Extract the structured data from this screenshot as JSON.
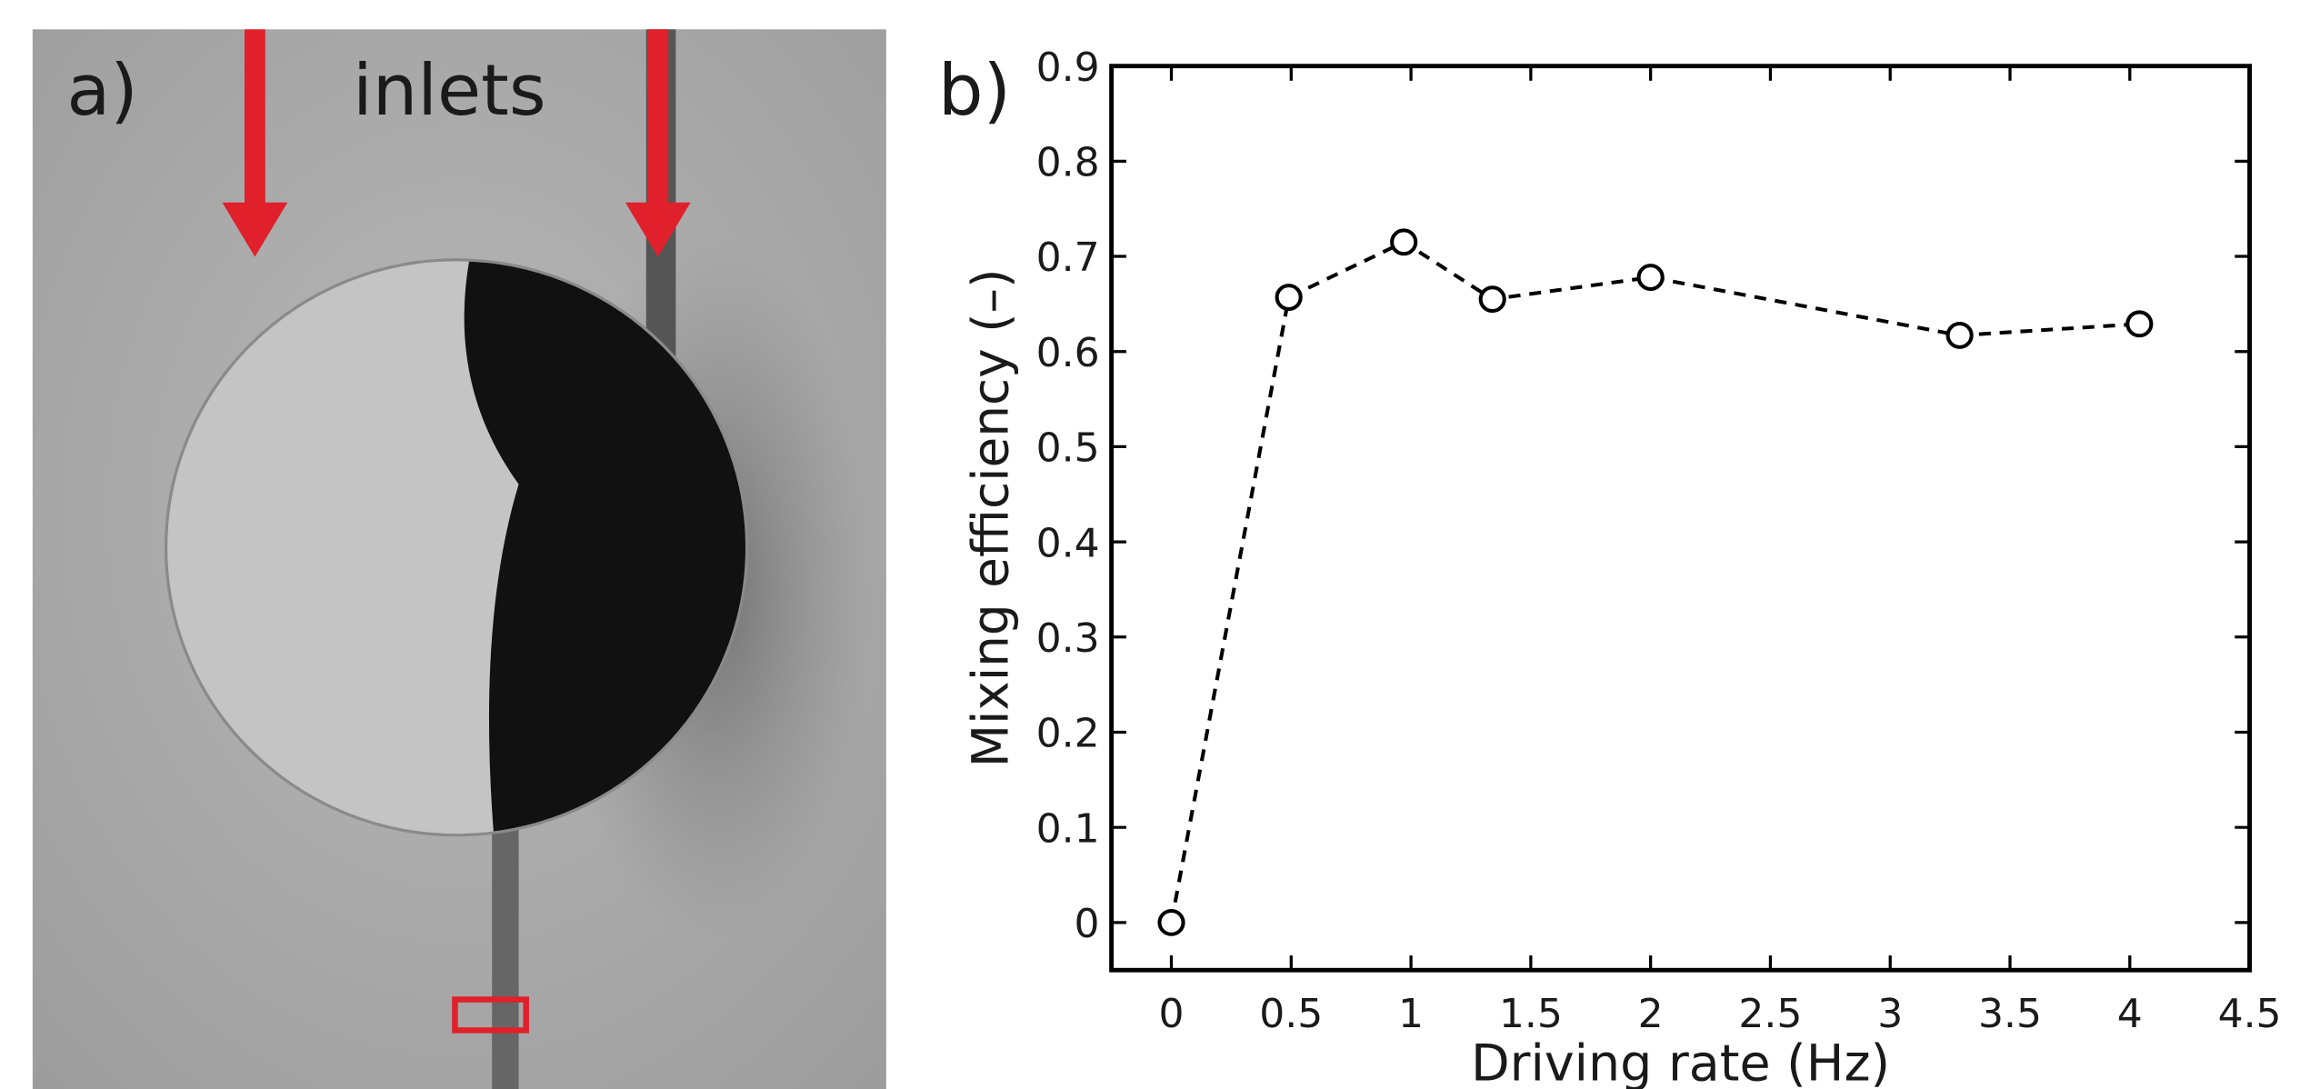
{
  "panel_a": {
    "label": "a)",
    "annotation": "inlets"
  },
  "chart_data": {
    "type": "line",
    "panel_label": "b)",
    "x_label": "Driving rate (Hz)",
    "y_label": "Mixing efficiency (–)",
    "x": [
      0,
      0.49,
      0.97,
      1.34,
      2.0,
      3.29,
      4.04
    ],
    "values": [
      0,
      0.657,
      0.715,
      0.655,
      0.678,
      0.617,
      0.629
    ],
    "color": "#000000",
    "line_style": "dashed",
    "marker": "open-circle",
    "xlim": [
      -0.25,
      4.5
    ],
    "ylim": [
      -0.05,
      0.9
    ],
    "xticks": [
      0,
      0.5,
      1,
      1.5,
      2,
      2.5,
      3,
      3.5,
      4,
      4.5
    ],
    "yticks": [
      0,
      0.1,
      0.2,
      0.3,
      0.4,
      0.5,
      0.6,
      0.7,
      0.8,
      0.9
    ],
    "grid": false
  }
}
